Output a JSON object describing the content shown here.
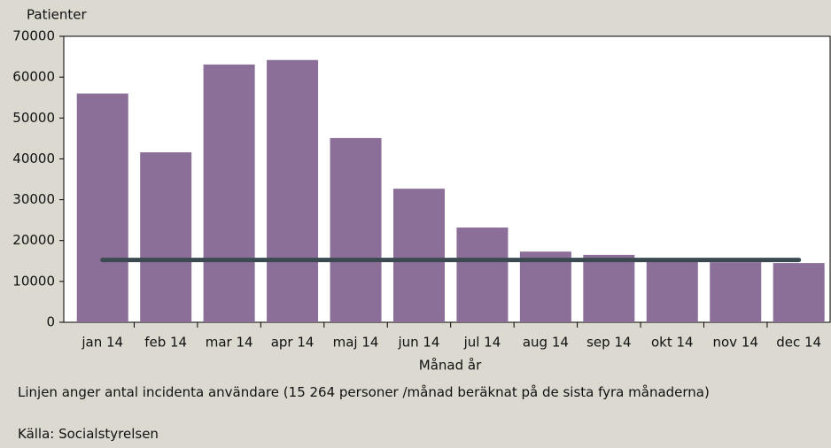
{
  "chart_data": {
    "type": "bar",
    "y_label": "Patienter",
    "x_label": "Månad år",
    "categories": [
      "jan 14",
      "feb 14",
      "mar 14",
      "apr 14",
      "maj 14",
      "jun 14",
      "jul 14",
      "aug 14",
      "sep 14",
      "okt 14",
      "nov 14",
      "dec 14"
    ],
    "values": [
      56000,
      41600,
      63100,
      64200,
      45100,
      32700,
      23200,
      17300,
      16500,
      15400,
      14700,
      14500
    ],
    "color": "#8b6f98",
    "reference_line": {
      "value": 15264,
      "color": "#3b4a50"
    },
    "ylim": [
      0,
      70000
    ],
    "yticks": [
      0,
      10000,
      20000,
      30000,
      40000,
      50000,
      60000,
      70000
    ],
    "note": "Linjen anger antal incidenta användare (15 264 personer /månad beräknat på de sista fyra månaderna)",
    "source": "Källa: Socialstyrelsen"
  }
}
